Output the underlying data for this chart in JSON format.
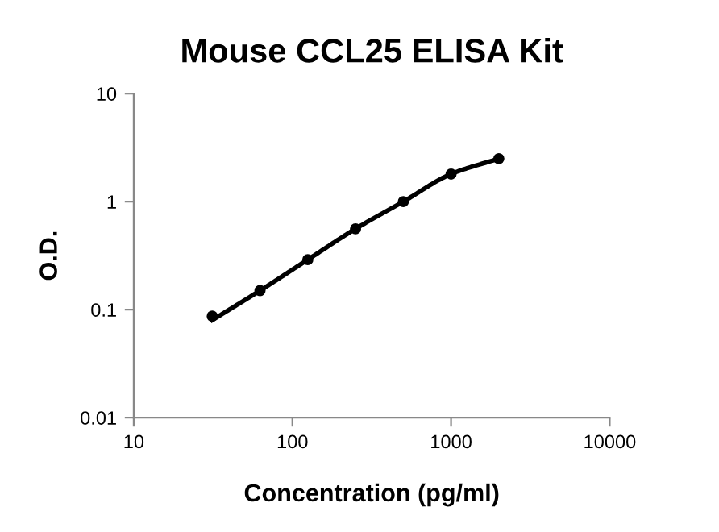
{
  "chart_data": {
    "type": "scatter",
    "title": "Mouse CCL25 ELISA Kit",
    "xlabel": "Concentration (pg/ml)",
    "ylabel": "O.D.",
    "log": "xy",
    "grid": false,
    "legend": false,
    "xlim": [
      10,
      10000
    ],
    "xticks": [
      10,
      100,
      1000,
      10000
    ],
    "ylim": [
      0.01,
      10
    ],
    "yticks": [
      0.01,
      0.1,
      1,
      10
    ],
    "series": [
      {
        "type": "line",
        "color": "#000000",
        "marker": "none",
        "line_style": "solid",
        "x": [
          31.25,
          62.5,
          125,
          250,
          500,
          1000,
          2000
        ],
        "values": [
          0.08,
          0.15,
          0.29,
          0.56,
          1.0,
          1.8,
          2.5
        ]
      },
      {
        "color": "#000000",
        "marker": "circle",
        "x": [
          31.25,
          62.5,
          125,
          250,
          500,
          1000,
          2000
        ],
        "values": [
          0.087,
          0.15,
          0.29,
          0.56,
          1.0,
          1.8,
          2.5
        ]
      }
    ]
  }
}
